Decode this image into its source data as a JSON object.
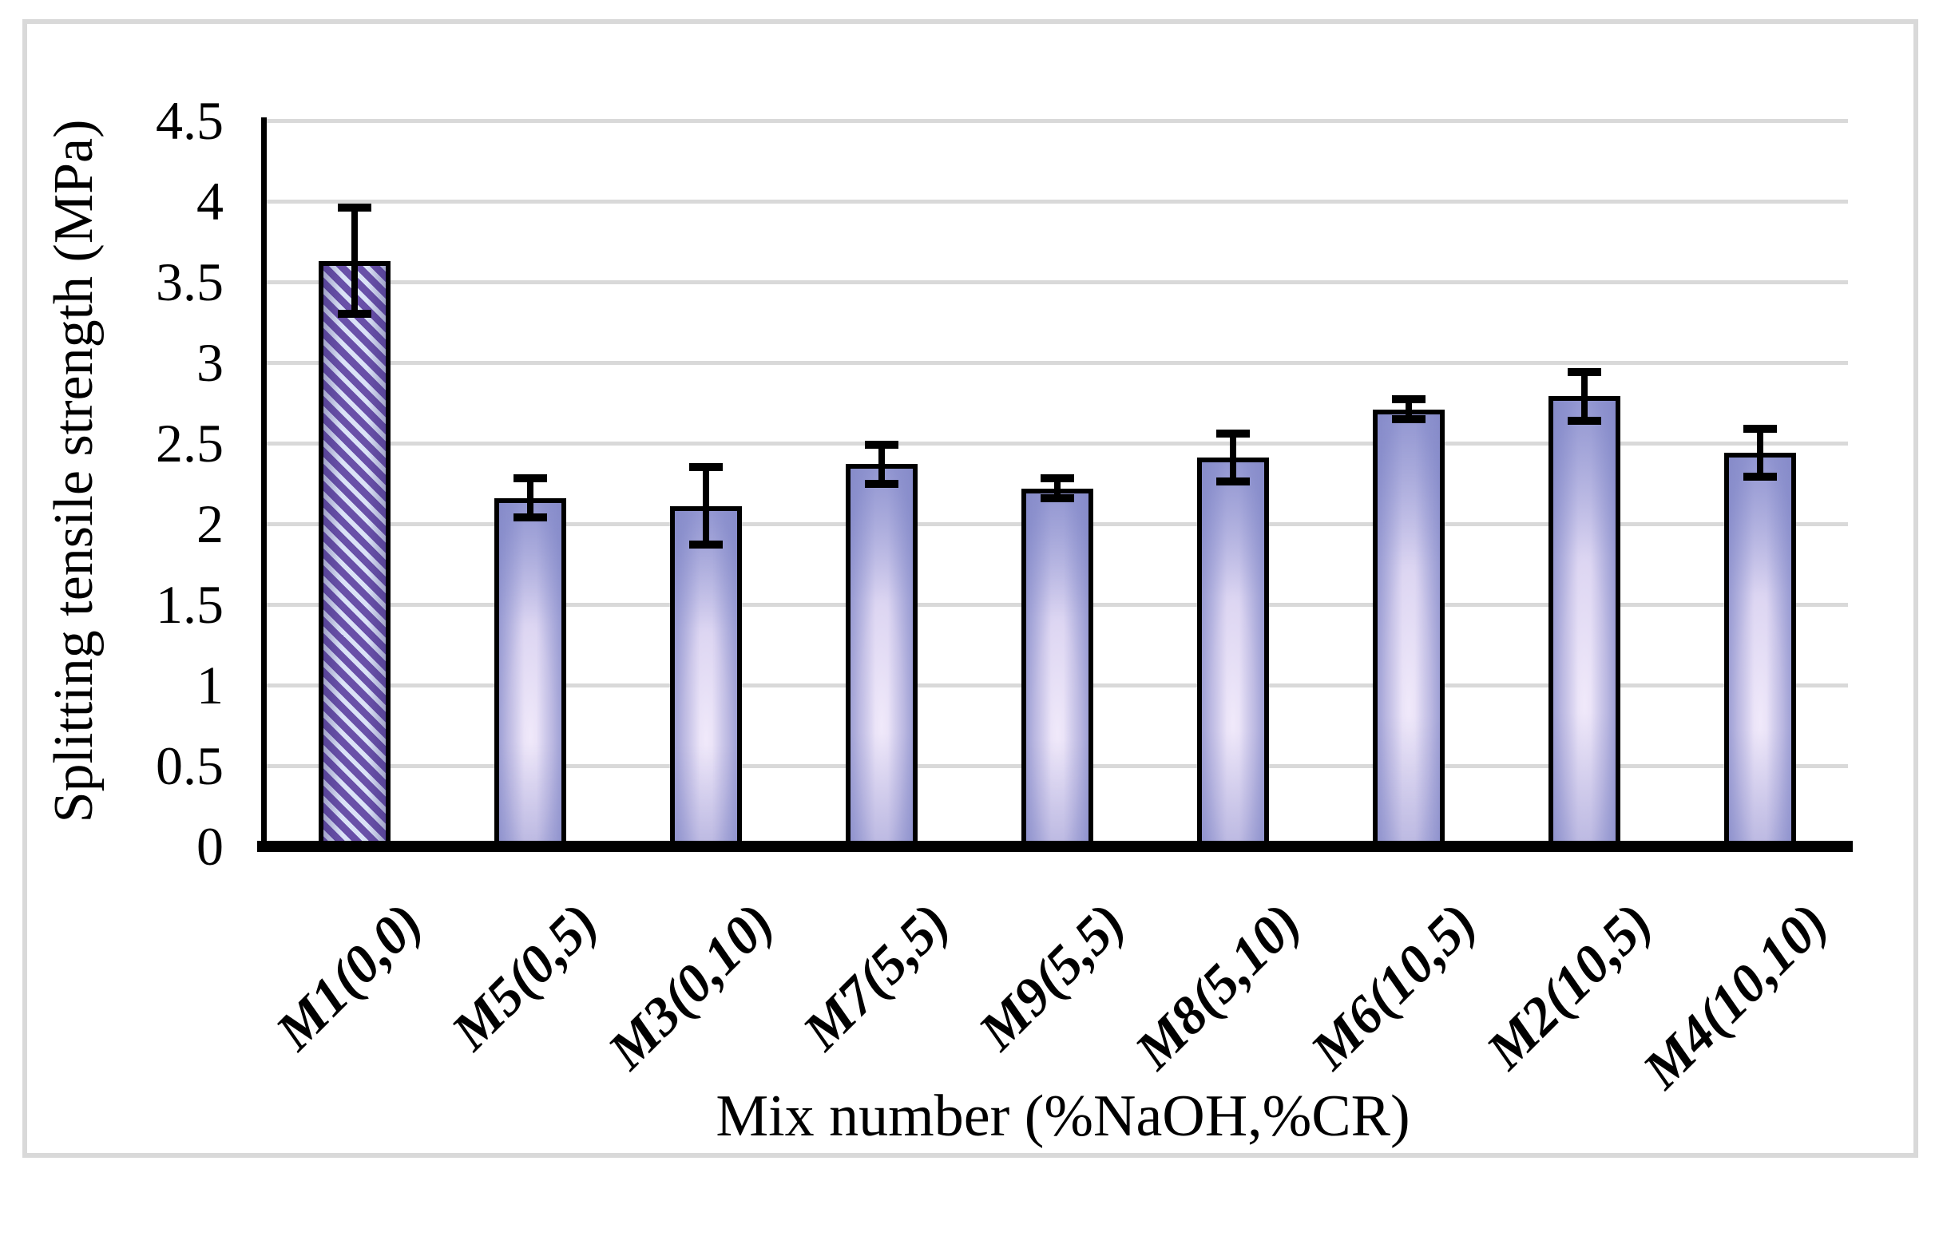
{
  "chart_data": {
    "type": "bar",
    "title": "",
    "ylabel": "Splitting tensile strength (MPa)",
    "xlabel": "Mix number (%NaOH,%CR)",
    "categories": [
      "M1(0,0)",
      "M5(0,5)",
      "M3(0,10)",
      "M7(5,5)",
      "M9(5,5)",
      "M8(5,10)",
      "M6(10,5)",
      "M2(10,5)",
      "M4(10,10)"
    ],
    "values": [
      3.63,
      2.16,
      2.11,
      2.37,
      2.22,
      2.41,
      2.71,
      2.79,
      2.44
    ],
    "error_bars": [
      0.33,
      0.12,
      0.24,
      0.12,
      0.06,
      0.15,
      0.06,
      0.15,
      0.15
    ],
    "ylim": [
      0,
      4.5
    ],
    "yticks": [
      {
        "value": 0,
        "label": "0"
      },
      {
        "value": 0.5,
        "label": "0.5"
      },
      {
        "value": 1,
        "label": "1"
      },
      {
        "value": 1.5,
        "label": "1.5"
      },
      {
        "value": 2,
        "label": "2"
      },
      {
        "value": 2.5,
        "label": "2.5"
      },
      {
        "value": 3,
        "label": "3"
      },
      {
        "value": 3.5,
        "label": "3.5"
      },
      {
        "value": 4,
        "label": "4"
      },
      {
        "value": 4.5,
        "label": "4.5"
      }
    ],
    "grid": true,
    "legend_position": "none",
    "bar_hatched": [
      true,
      false,
      false,
      false,
      false,
      false,
      false,
      false,
      false
    ],
    "colors": {
      "hatch_purple": "#6950a8",
      "hatch_light": "#dbe3f7",
      "bar_edge_shade": "#a2a6dc",
      "bar_mid": "#ddd6f2",
      "bar_highlight": "#f0e9fa",
      "bar_outline": "#000000",
      "error_bar": "#000000",
      "gridline": "#d9d9d9",
      "figure_border": "#d9d9d9",
      "background": "#ffffff"
    }
  }
}
